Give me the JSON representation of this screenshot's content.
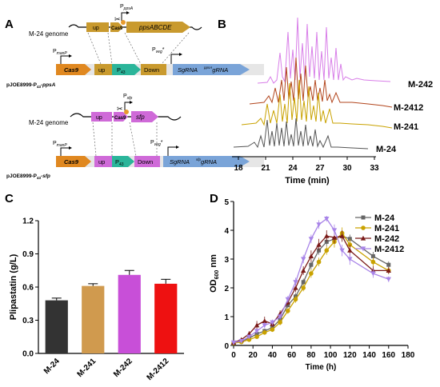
{
  "panels": {
    "A": {
      "letter": "A",
      "construct_top": {
        "genome_label": "M-24 genome",
        "promoter_label": "PppsA",
        "promoter_main": "P",
        "promoter_sub": "ppsA",
        "genome_up": "up",
        "genome_cas9": "Cas9",
        "genome_gene": "ppsABCDE",
        "pman": "P",
        "pman_sub": "manP",
        "pveg": "P",
        "pveg_sub": "veg",
        "pveg_star": "*",
        "cas9": "Cas9",
        "up": "up",
        "p43": "P",
        "p43_sub": "43",
        "down": "Down",
        "sgrna": "SgRNA",
        "sgrna_target": "ppsA",
        "sgrna_gene": "gRNA",
        "plasmid_prefix": "pJOE8999-P",
        "plasmid_sub": "43",
        "plasmid_suffix": "-ppsA"
      },
      "construct_bottom": {
        "genome_label": "M-24 genome",
        "promoter_main": "P",
        "promoter_sub": "sfp",
        "genome_up": "up",
        "genome_cas9": "Cas9",
        "genome_gene": "sfp",
        "pman": "P",
        "pman_sub": "manP",
        "pveg": "P",
        "pveg_sub": "veg",
        "pveg_star": "*",
        "cas9": "Cas9",
        "up": "up",
        "p43": "P",
        "p43_sub": "43",
        "down": "Down",
        "sgrna": "SgRNA",
        "sgrna_target": "sfp",
        "sgrna_gene": "gRNA",
        "plasmid_prefix": "pJOE8999-P",
        "plasmid_sub": "43",
        "plasmid_suffix": "-sfp"
      }
    },
    "B": {
      "letter": "B",
      "xlabel": "Time (min)",
      "ticks": [
        "18",
        "21",
        "24",
        "27",
        "30",
        "33"
      ],
      "traces": [
        {
          "label": "M-242",
          "color": "#d87ee8"
        },
        {
          "label": "M-2412",
          "color": "#b2451c"
        },
        {
          "label": "M-241",
          "color": "#c9a200"
        },
        {
          "label": "M-24",
          "color": "#555555"
        }
      ]
    },
    "C": {
      "letter": "C",
      "ylabel": "Plipastatin (g/L)"
    },
    "D": {
      "letter": "D",
      "ylabel_main": "OD",
      "ylabel_sub": "600",
      "ylabel_unit": " nm",
      "xlabel": "Time (h)"
    }
  },
  "chart_data": [
    {
      "type": "bar",
      "title": "",
      "xlabel": "",
      "ylabel": "Plipastatin (g/L)",
      "ylim": [
        0,
        1.2
      ],
      "yticks": [
        "0.0",
        "0.3",
        "0.6",
        "0.9",
        "1.2"
      ],
      "categories": [
        "M-24",
        "M-241",
        "M-242",
        "M-2412"
      ],
      "values": [
        0.48,
        0.61,
        0.71,
        0.63
      ],
      "errors": [
        0.02,
        0.02,
        0.04,
        0.04
      ],
      "colors": [
        "#333333",
        "#d09a4e",
        "#c84fd8",
        "#ee1111"
      ]
    },
    {
      "type": "line",
      "title": "",
      "xlabel": "Time (h)",
      "ylabel": "OD600 nm",
      "xlim": [
        0,
        180
      ],
      "ylim": [
        0,
        5
      ],
      "xticks": [
        "0",
        "20",
        "40",
        "60",
        "80",
        "100",
        "120",
        "140",
        "160",
        "180"
      ],
      "yticks": [
        "0",
        "1",
        "2",
        "3",
        "4",
        "5"
      ],
      "legend_position": "top-right",
      "series": [
        {
          "name": "M-24",
          "color": "#666666",
          "marker": "square",
          "x": [
            0,
            8,
            16,
            24,
            32,
            40,
            48,
            56,
            64,
            72,
            80,
            88,
            96,
            104,
            112,
            120,
            144,
            160
          ],
          "y": [
            0.08,
            0.15,
            0.25,
            0.4,
            0.5,
            0.62,
            0.9,
            1.4,
            1.7,
            2.2,
            2.8,
            3.3,
            3.6,
            3.7,
            3.8,
            3.7,
            3.1,
            2.8
          ],
          "err": [
            0.02,
            0.03,
            0.05,
            0.06,
            0.08,
            0.08,
            0.1,
            0.1,
            0.12,
            0.12,
            0.15,
            0.15,
            0.15,
            0.15,
            0.15,
            0.15,
            0.15,
            0.12
          ]
        },
        {
          "name": "M-241",
          "color": "#c9a200",
          "marker": "circle",
          "x": [
            0,
            8,
            16,
            24,
            32,
            40,
            48,
            56,
            64,
            72,
            80,
            88,
            96,
            104,
            112,
            120,
            144,
            160
          ],
          "y": [
            0.08,
            0.12,
            0.2,
            0.3,
            0.45,
            0.55,
            0.8,
            1.2,
            1.6,
            2.0,
            2.5,
            2.9,
            3.3,
            3.6,
            3.9,
            3.5,
            2.9,
            2.6
          ],
          "err": [
            0.02,
            0.03,
            0.05,
            0.06,
            0.08,
            0.08,
            0.1,
            0.1,
            0.12,
            0.12,
            0.15,
            0.15,
            0.15,
            0.2,
            0.2,
            0.2,
            0.15,
            0.12
          ]
        },
        {
          "name": "M-242",
          "color": "#7a1a18",
          "marker": "triangle",
          "x": [
            0,
            8,
            16,
            24,
            32,
            40,
            48,
            56,
            64,
            72,
            80,
            88,
            96,
            104,
            112,
            120,
            144,
            160
          ],
          "y": [
            0.1,
            0.2,
            0.4,
            0.7,
            0.85,
            0.75,
            1.1,
            1.5,
            2.0,
            2.6,
            3.1,
            3.5,
            3.8,
            3.75,
            3.8,
            3.3,
            2.6,
            2.6
          ],
          "err": [
            0.02,
            0.05,
            0.1,
            0.15,
            0.15,
            0.1,
            0.12,
            0.12,
            0.15,
            0.15,
            0.2,
            0.2,
            0.2,
            0.2,
            0.2,
            0.2,
            0.15,
            0.12
          ]
        },
        {
          "name": "M-2412",
          "color": "#a884e8",
          "marker": "triangle-down",
          "x": [
            0,
            8,
            16,
            24,
            32,
            40,
            48,
            56,
            64,
            72,
            80,
            88,
            96,
            104,
            112,
            120,
            144,
            160
          ],
          "y": [
            0.1,
            0.15,
            0.3,
            0.5,
            0.7,
            0.8,
            1.0,
            1.6,
            2.2,
            3.0,
            3.7,
            4.2,
            4.4,
            4.0,
            3.3,
            3.0,
            2.5,
            2.3
          ],
          "err": [
            0.02,
            0.03,
            0.06,
            0.08,
            0.1,
            0.1,
            0.1,
            0.12,
            0.15,
            0.15,
            0.15,
            0.15,
            0.1,
            0.2,
            0.2,
            0.2,
            0.15,
            0.1
          ]
        }
      ]
    }
  ]
}
